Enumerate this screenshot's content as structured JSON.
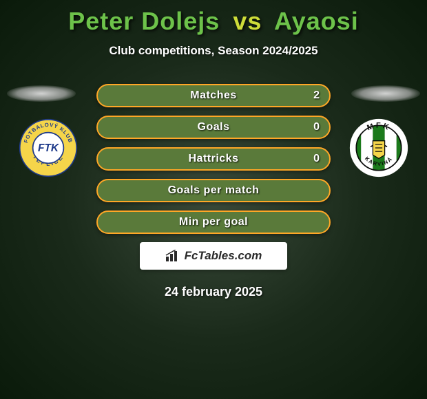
{
  "title": {
    "player1": "Peter Dolejs",
    "vs": "vs",
    "player2": "Ayaosi",
    "color1": "#6dc24a",
    "color_vs": "#cddc39",
    "color2": "#6dc24a"
  },
  "subtitle": "Club competitions, Season 2024/2025",
  "bars": [
    {
      "label": "Matches",
      "left": "",
      "right": "2",
      "border": "#ffa726",
      "bg": "#5a7a3a"
    },
    {
      "label": "Goals",
      "left": "",
      "right": "0",
      "border": "#ffa726",
      "bg": "#5a7a3a"
    },
    {
      "label": "Hattricks",
      "left": "",
      "right": "0",
      "border": "#ffa726",
      "bg": "#5a7a3a"
    },
    {
      "label": "Goals per match",
      "left": "",
      "right": "",
      "border": "#ffa726",
      "bg": "#5a7a3a"
    },
    {
      "label": "Min per goal",
      "left": "",
      "right": "",
      "border": "#ffa726",
      "bg": "#5a7a3a"
    }
  ],
  "crest_left": {
    "outer_text_top": "FOTBALOVÝ KLUB",
    "outer_text_bottom": "TEPLICE",
    "inner_letters": "FTK",
    "ring_color": "#f5d54a",
    "inner_color": "#ffffff",
    "text_color": "#1e3a8a",
    "border_color": "#1e3a8a"
  },
  "crest_right": {
    "text_top": "MFK",
    "text_bottom": "KARVINÁ",
    "stripe_colors": [
      "#1b7a1b",
      "#ffffff",
      "#1b7a1b",
      "#ffffff",
      "#1b7a1b"
    ],
    "ring_color": "#ffffff",
    "border_color": "#0a0a0a",
    "center_accent": "#f5d54a"
  },
  "watermark": {
    "icon": "bar-chart-icon",
    "text": "FcTables.com"
  },
  "date": "24 february 2025",
  "background": {
    "gradient_center": "#3a4a3a",
    "gradient_mid": "#1a2a1a",
    "gradient_edge": "#0a1a0a"
  }
}
